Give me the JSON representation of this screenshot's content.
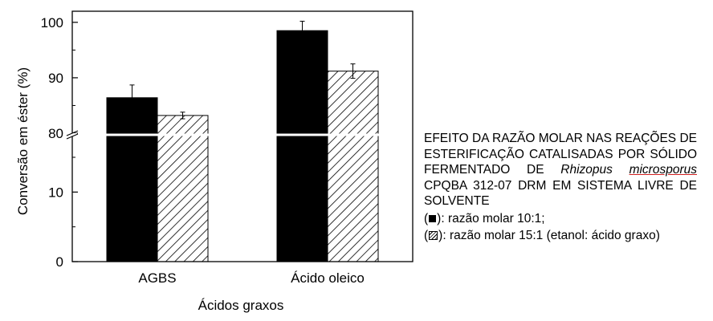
{
  "chart_data": {
    "type": "bar",
    "categories": [
      "AGBS",
      "Ácido oleico"
    ],
    "series": [
      {
        "name": "razão molar 10:1",
        "fill": "solid",
        "color": "#000000",
        "values": [
          86.4,
          98.5
        ],
        "errors": [
          2.3,
          1.7
        ]
      },
      {
        "name": "razão molar 15:1",
        "fill": "hatched",
        "color": "#000000",
        "values": [
          83.2,
          91.2
        ],
        "errors": [
          0.6,
          1.3
        ]
      }
    ],
    "xlabel": "Ácidos graxos",
    "ylabel": "Conversão em éster (%)",
    "y_axis": {
      "broken": true,
      "lower_segment": [
        0,
        18
      ],
      "upper_segment": [
        80,
        102
      ],
      "break_value": 80,
      "ticks": [
        0,
        10,
        80,
        90,
        100
      ],
      "tick_labels": [
        "0",
        "10",
        "80",
        "90",
        "100"
      ]
    },
    "grid": false,
    "legend_position": "caption at right"
  },
  "caption": {
    "title_pre": "EFEITO DA RAZÃO MOLAR NAS REAÇÕES DE ESTERIFICAÇÃO CATALISADAS POR SÓLIDO FERMENTADO DE ",
    "title_italic": "Rhizopus",
    "title_italic_underlined": "microsporus",
    "title_post": " CPQBA 312-07 DRM EM SISTEMA LIVRE DE SOLVENTE",
    "legend_solid_open": "(",
    "legend_solid_text": "): razão molar 10:1;",
    "legend_hatch_open": "(",
    "legend_hatch_text": "): razão molar 15:1 (etanol: ácido graxo)"
  }
}
